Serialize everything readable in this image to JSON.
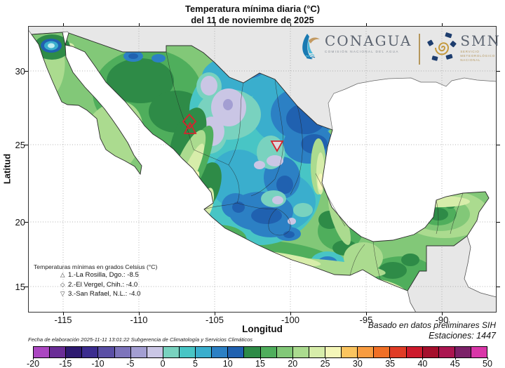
{
  "title": {
    "line1": "Temperatura mínima diaria (°C)",
    "line2": "del 11 de noviembre de 2025"
  },
  "logos": {
    "conagua": {
      "name": "CONAGUA",
      "subtitle": "COMISIÓN NACIONAL DEL AGUA"
    },
    "smn": {
      "name": "SMN",
      "subtitle": "SERVICIO METEOROLÓGICO NACIONAL"
    }
  },
  "axes": {
    "x": {
      "label": "Longitud",
      "ticks": [
        "-115",
        "-110",
        "-105",
        "-100",
        "-95",
        "-90"
      ]
    },
    "y": {
      "label": "Latitud",
      "ticks": [
        "30",
        "25",
        "20",
        "15"
      ]
    }
  },
  "map_legend": {
    "title": "Temperaturas mínimas en grados Celsius (°C)",
    "entries": [
      {
        "symbol": "△",
        "label": "1.-La Rosilla, Dgo.: -8.5"
      },
      {
        "symbol": "◇",
        "label": "2.-El Vergel, Chih.: -4.0"
      },
      {
        "symbol": "▽",
        "label": "3.-San Rafael, N.L.: -4.0"
      }
    ]
  },
  "footer": {
    "elaboration": "Fecha de elaboración 2025-11-11 13:01:22 Subgerencia de Climatología y Servicios Climáticos",
    "based_on": "Basado en datos preliminares SIH",
    "stations": "Estaciones:  1447"
  },
  "colorbar": {
    "unit": "°C",
    "min": -20,
    "max": 50,
    "step": 2.5,
    "tick_labels": [
      "-20",
      "-15",
      "-10",
      "-5",
      "0",
      "5",
      "10",
      "15",
      "20",
      "25",
      "30",
      "35",
      "40",
      "45",
      "50"
    ],
    "colors": [
      "#ab47c1",
      "#6a2d96",
      "#2e1a70",
      "#3c2d8f",
      "#5a4fa5",
      "#7d74bb",
      "#a39ed2",
      "#cac6e5",
      "#79d2bf",
      "#48c5c5",
      "#3aaecd",
      "#2c80c4",
      "#2061b0",
      "#2e8b47",
      "#4fae5c",
      "#82c878",
      "#abdb8f",
      "#d7edaa",
      "#f4f6b8",
      "#fac45f",
      "#f89c40",
      "#f07026",
      "#e03c26",
      "#cd1a2c",
      "#a50f2c",
      "#ab1650",
      "#7c2168",
      "#d936a8"
    ]
  },
  "marker_color": "#d4252e"
}
